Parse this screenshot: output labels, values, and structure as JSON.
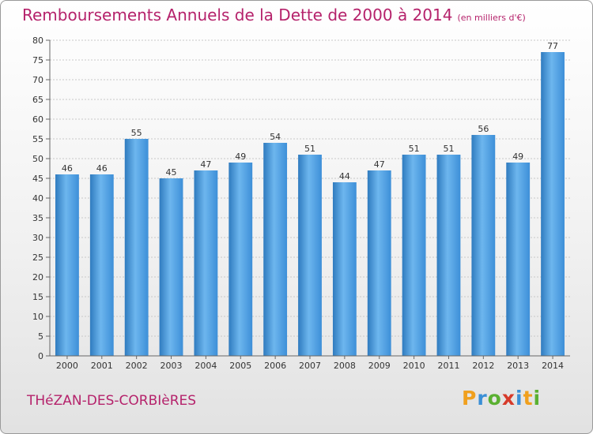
{
  "header": {
    "title": "Remboursements Annuels de la Dette de 2000 à 2014",
    "unit_note": "(en milliers d'€)"
  },
  "footer": {
    "place": "THéZAN-DES-CORBIèRES",
    "logo_letters": [
      "P",
      "r",
      "o",
      "x",
      "i",
      "t",
      "i"
    ],
    "logo_colors": [
      "#f0a01e",
      "#3a8fd6",
      "#5ab031",
      "#d63a2a",
      "#3a8fd6",
      "#f0a01e",
      "#5ab031"
    ]
  },
  "colors": {
    "bar": "#3d8fd8",
    "bar_light": "#6db6ee",
    "bar_dark": "#2f7bbf",
    "grid": "#c8c8c8",
    "axis": "#666666",
    "text": "#333333",
    "accent": "#b5226b"
  },
  "chart_data": {
    "type": "bar",
    "title": "Remboursements Annuels de la Dette de 2000 à 2014",
    "xlabel": "",
    "ylabel": "",
    "categories": [
      "2000",
      "2001",
      "2002",
      "2003",
      "2004",
      "2005",
      "2006",
      "2007",
      "2008",
      "2009",
      "2010",
      "2011",
      "2012",
      "2013",
      "2014"
    ],
    "values": [
      46,
      46,
      55,
      45,
      47,
      49,
      54,
      51,
      44,
      47,
      51,
      51,
      56,
      49,
      77
    ],
    "ylim": [
      0,
      80
    ],
    "yticks": [
      0,
      5,
      10,
      15,
      20,
      25,
      30,
      35,
      40,
      45,
      50,
      55,
      60,
      65,
      70,
      75,
      80
    ],
    "grid": true
  }
}
